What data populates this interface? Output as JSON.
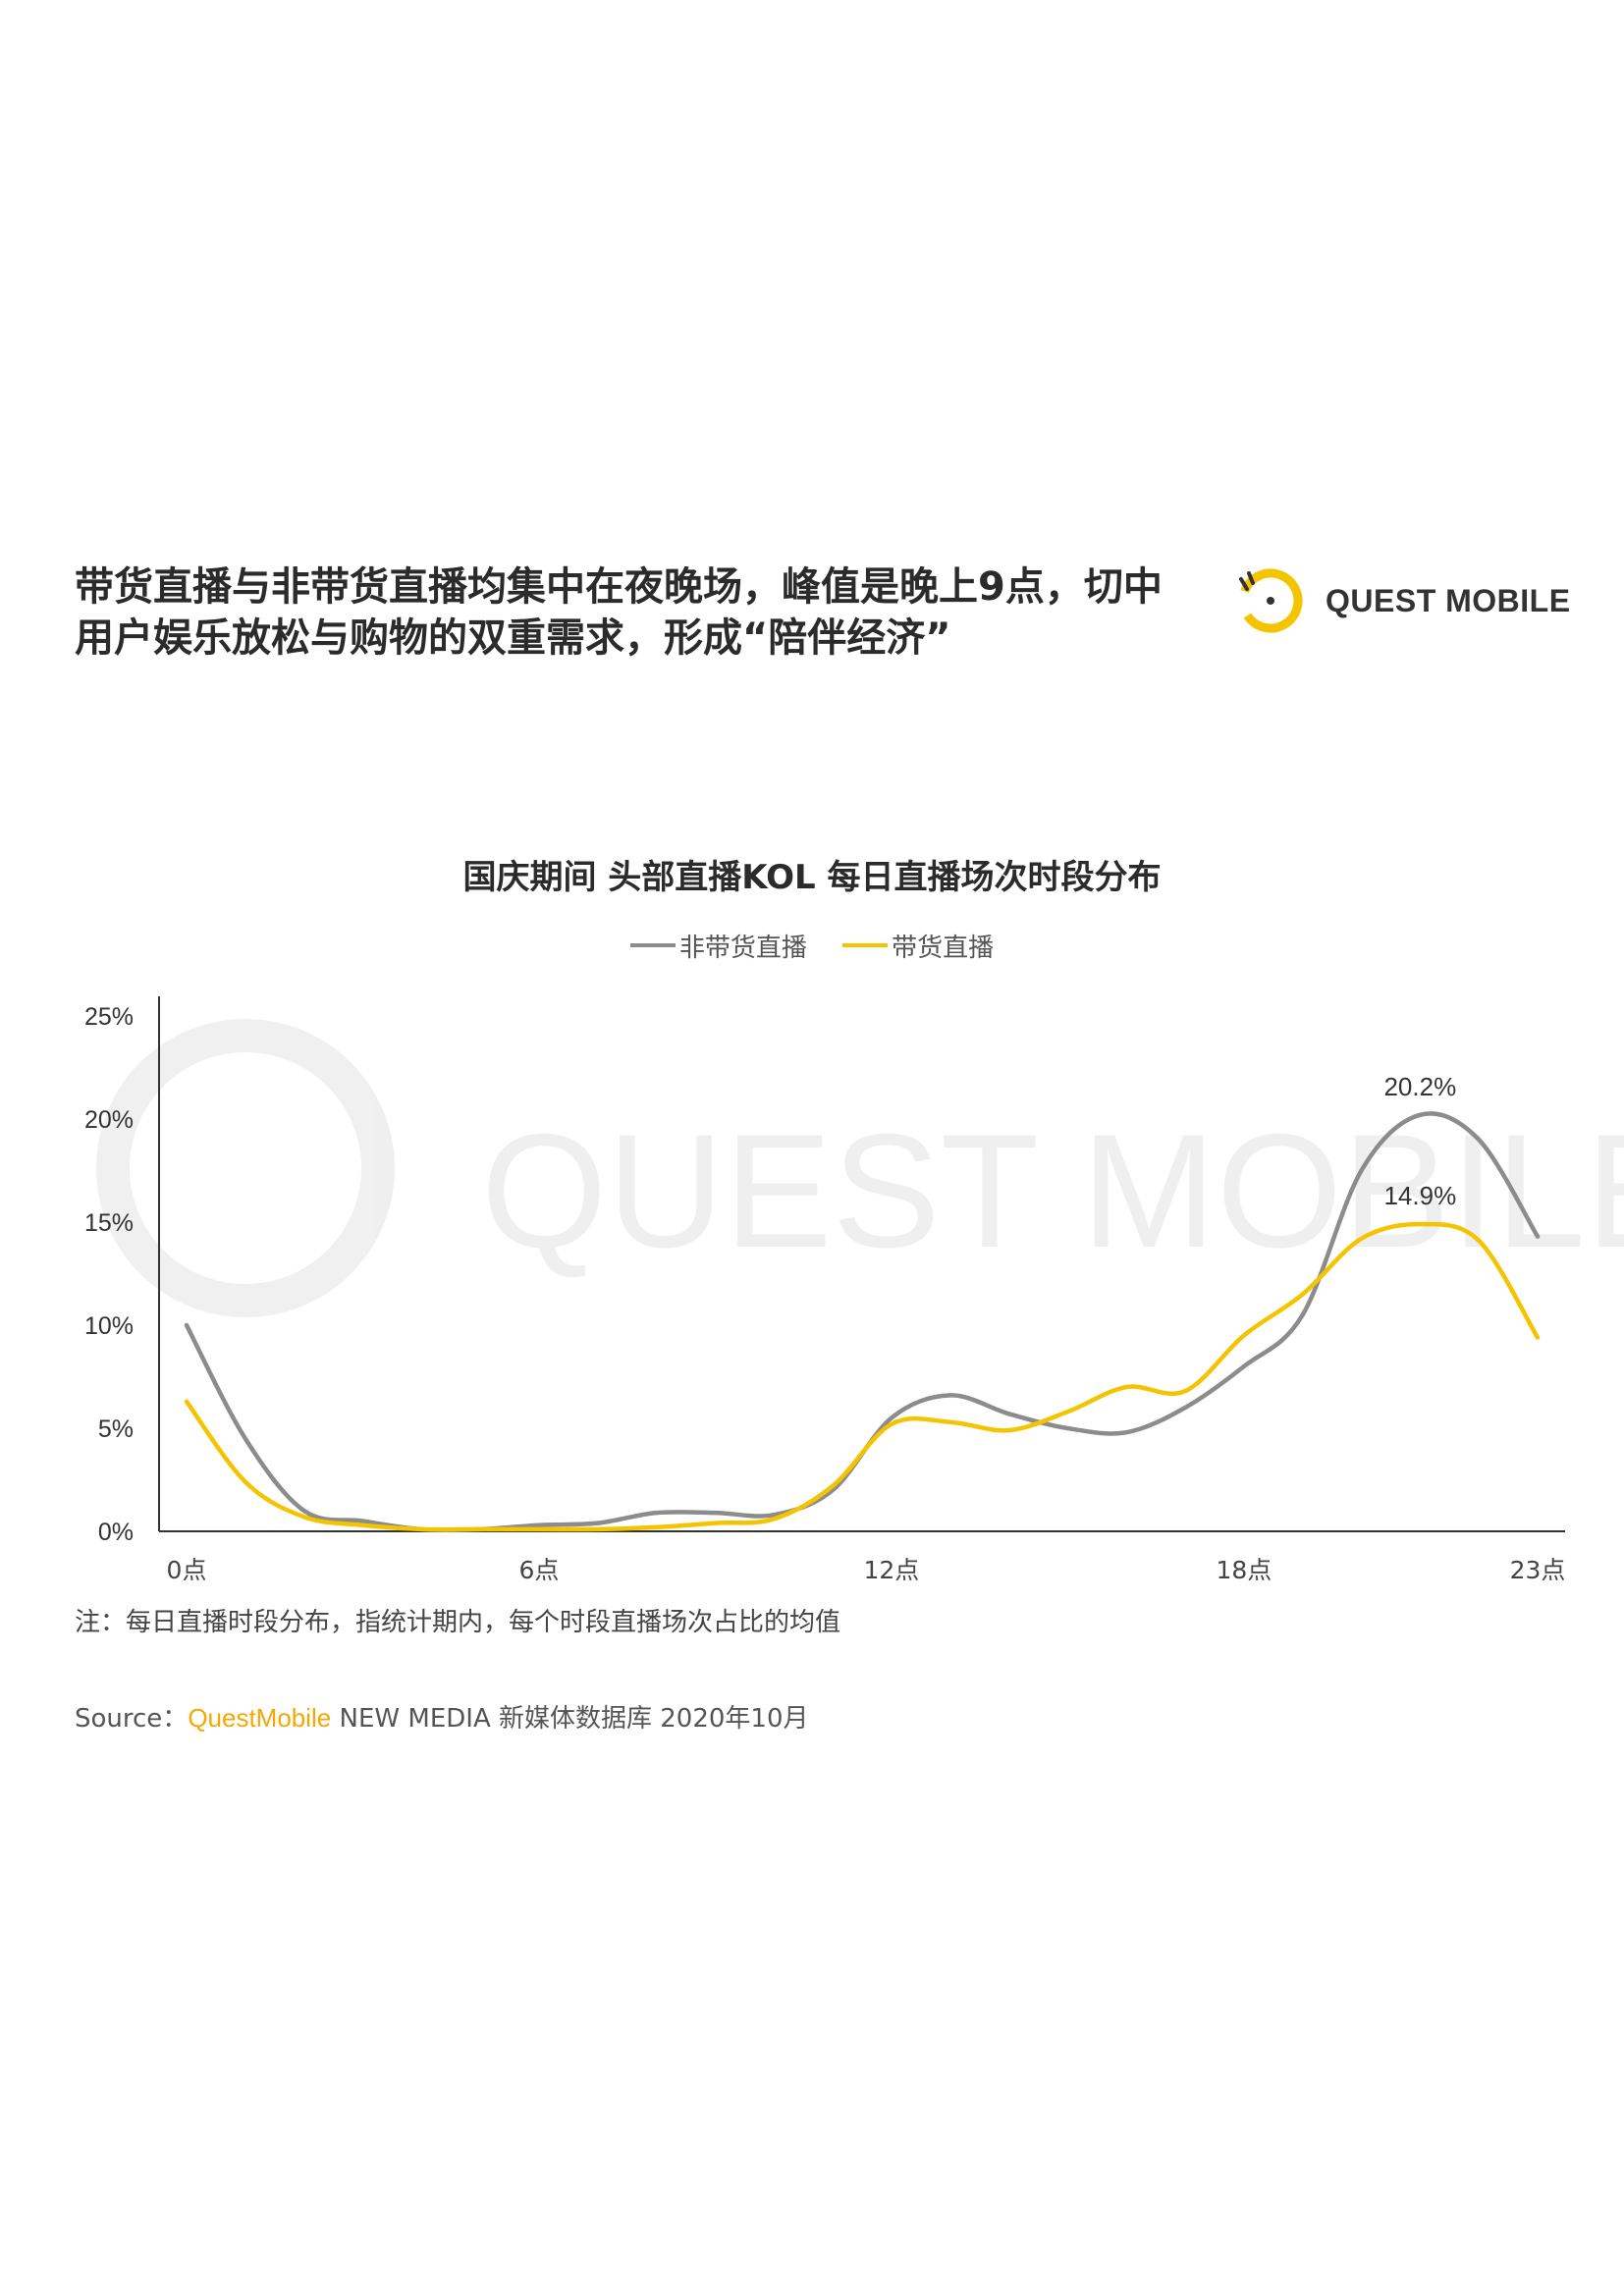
{
  "headline": {
    "line1": "带货直播与非带货直播均集中在夜晚场，峰值是晚上9点，切中",
    "line2": "用户娱乐放松与购物的双重需求，形成“陪伴经济”"
  },
  "logo": {
    "text": "QUEST MOBILE",
    "icon": "quest-mobile-logo-icon",
    "color": "#f5c400"
  },
  "watermark": {
    "text": "QUEST MOBILE"
  },
  "chart_data": {
    "type": "line",
    "title": "国庆期间 头部直播KOL 每日直播场次时段分布",
    "xlabel": "",
    "ylabel": "",
    "x": [
      0,
      1,
      2,
      3,
      4,
      5,
      6,
      7,
      8,
      9,
      10,
      11,
      12,
      13,
      14,
      15,
      16,
      17,
      18,
      19,
      20,
      21,
      22,
      23
    ],
    "x_tick_labels": [
      {
        "x": 0,
        "label": "0点"
      },
      {
        "x": 6,
        "label": "6点"
      },
      {
        "x": 12,
        "label": "12点"
      },
      {
        "x": 18,
        "label": "18点"
      },
      {
        "x": 23,
        "label": "23点"
      }
    ],
    "y_tick_labels": [
      "0%",
      "5%",
      "10%",
      "15%",
      "20%",
      "25%"
    ],
    "ylim": [
      0,
      25
    ],
    "legend_position": "top-center",
    "grid": false,
    "series": [
      {
        "name": "非带货直播",
        "color": "#8c8c8c",
        "values": [
          10.0,
          4.5,
          1.0,
          0.5,
          0.1,
          0.1,
          0.3,
          0.4,
          0.9,
          0.9,
          0.8,
          2.0,
          5.5,
          6.6,
          5.7,
          5.0,
          4.8,
          6.0,
          8.0,
          10.5,
          17.5,
          20.2,
          19.0,
          14.3
        ]
      },
      {
        "name": "带货直播",
        "color": "#f5c400",
        "values": [
          6.3,
          2.4,
          0.7,
          0.3,
          0.1,
          0.1,
          0.1,
          0.1,
          0.2,
          0.4,
          0.6,
          2.2,
          5.2,
          5.3,
          4.9,
          5.8,
          7.0,
          6.8,
          9.5,
          11.5,
          14.2,
          14.9,
          14.1,
          9.4
        ]
      }
    ],
    "annotations": [
      {
        "x": 21,
        "y": 20.2,
        "text": "20.2%"
      },
      {
        "x": 21,
        "y": 14.9,
        "text": "14.9%"
      }
    ]
  },
  "note": "注：每日直播时段分布，指统计期内，每个时段直播场次占比的均值",
  "source": {
    "prefix": "Source：",
    "brand": "QuestMobile",
    "rest": " NEW MEDIA 新媒体数据库 2020年10月"
  }
}
